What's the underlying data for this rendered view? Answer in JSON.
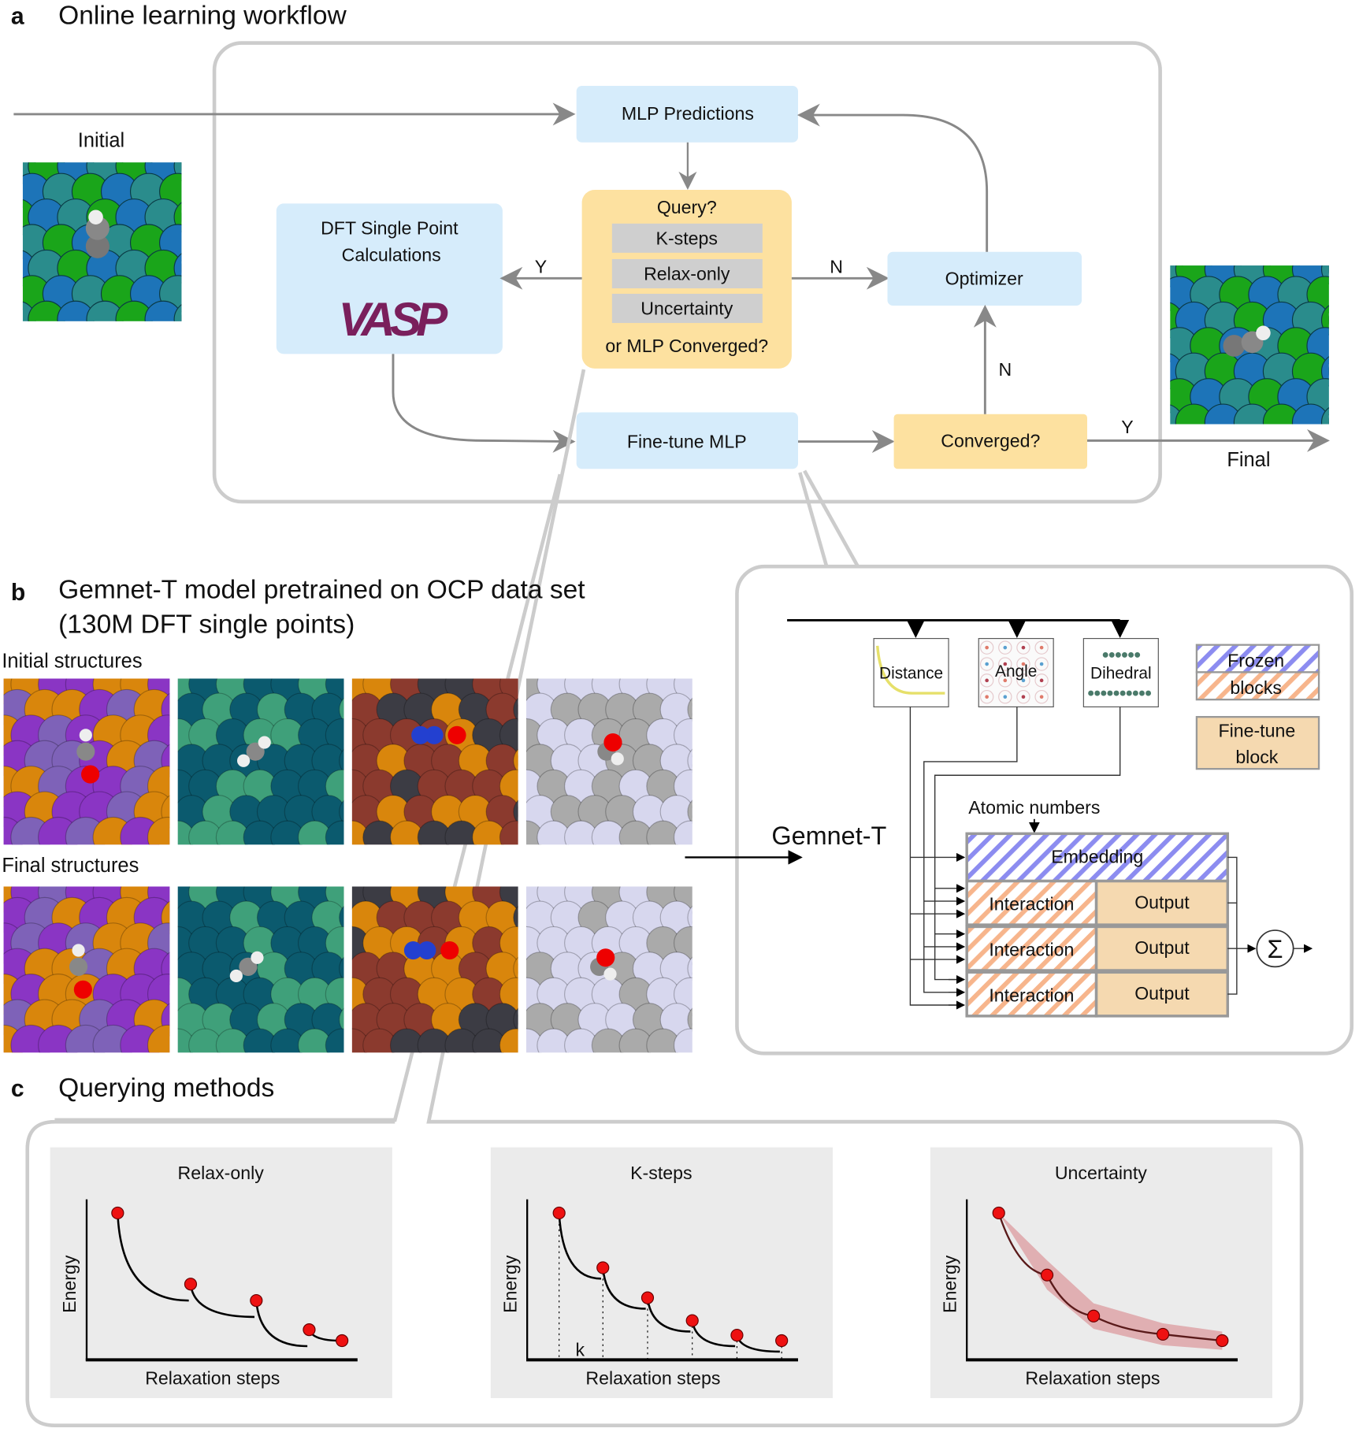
{
  "panel_a": {
    "label": "a",
    "title": "Online learning workflow",
    "initial_label": "Initial",
    "final_label": "Final",
    "mlp_predictions": "MLP Predictions",
    "dft_line1": "DFT Single Point",
    "dft_line2": "Calculations",
    "vasp_logo": "VASP",
    "query_title": "Query?",
    "query_options": [
      "K-steps",
      "Relax-only",
      "Uncertainty"
    ],
    "query_footer": "or MLP Converged?",
    "optimizer": "Optimizer",
    "fine_tune": "Fine-tune MLP",
    "converged": "Converged?",
    "yes": "Y",
    "no": "N"
  },
  "panel_b": {
    "label": "b",
    "title_line1": "Gemnet-T model pretrained on OCP data set",
    "title_line2": "(130M DFT single points)",
    "initial_structures": "Initial structures",
    "final_structures": "Final structures",
    "model_name": "Gemnet-T",
    "basis_blocks": [
      "Distance",
      "Angle",
      "Dihedral"
    ],
    "legend_frozen_line1": "Frozen",
    "legend_frozen_line2": "blocks",
    "legend_finetune_line1": "Fine-tune",
    "legend_finetune_line2": "block",
    "atomic_numbers": "Atomic numbers",
    "embedding": "Embedding",
    "interaction": "Interaction",
    "output": "Output",
    "sum_symbol": "Σ"
  },
  "panel_c": {
    "label": "c",
    "title": "Querying methods",
    "plots": [
      {
        "title": "Relax-only",
        "ylabel": "Energy",
        "xlabel": "Relaxation steps"
      },
      {
        "title": "K-steps",
        "ylabel": "Energy",
        "xlabel": "Relaxation steps",
        "annotation": "k"
      },
      {
        "title": "Uncertainty",
        "ylabel": "Energy",
        "xlabel": "Relaxation steps"
      }
    ]
  },
  "colors": {
    "mlp_box": "#d6ecfb",
    "query_box": "#fde1a0",
    "query_option": "#cfcfcf",
    "frozen_hatch": "#8c8cf0",
    "finetune_hatch": "#f7b58c",
    "finetune_fill": "#f5d9b0",
    "point": "#ee1111",
    "band": "#d9878c",
    "panel_bg": "#ebebeb",
    "frame": "#cccccc"
  },
  "structure_palettes": [
    [
      "#8a35c4",
      "#d9860c",
      "#7e62b8"
    ],
    [
      "#0b5a6e",
      "#3fa07a",
      "#0b5a6e"
    ],
    [
      "#8b3a2e",
      "#d9860c",
      "#3c3c44"
    ],
    [
      "#d7d7ee",
      "#aaaaaa",
      "#d7d7ee"
    ]
  ],
  "surface_palette": [
    "#2a8c8c",
    "#1aa51a",
    "#1d74b8"
  ]
}
